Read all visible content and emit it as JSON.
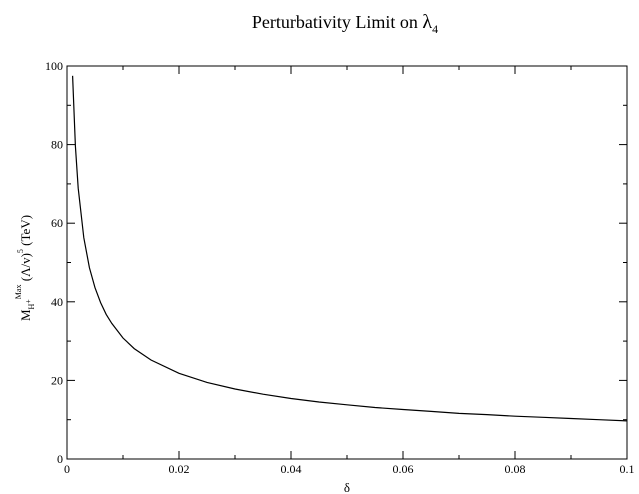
{
  "chart_data": {
    "type": "line",
    "title": {
      "main": "Perturbativity Limit on ",
      "symbol": "λ",
      "subscript": "4"
    },
    "xlabel": "δ",
    "ylabel": {
      "m": "M",
      "h": "H",
      "plus": "+",
      "max": "Max",
      "lambda_v": "(Λ/v)",
      "power": "5",
      "unit": "(TeV)"
    },
    "xlim": [
      0,
      0.1
    ],
    "ylim": [
      0,
      100
    ],
    "x_ticks": [
      "0",
      "0.02",
      "0.04",
      "0.06",
      "0.08",
      "0.1"
    ],
    "y_ticks": [
      "0",
      "20",
      "40",
      "60",
      "80",
      "100"
    ],
    "grid": false,
    "series": [
      {
        "color": "#000000",
        "points": [
          [
            0.001,
            97.5
          ],
          [
            0.0015,
            79.6
          ],
          [
            0.002,
            68.9
          ],
          [
            0.003,
            56.3
          ],
          [
            0.004,
            48.7
          ],
          [
            0.005,
            43.6
          ],
          [
            0.006,
            39.8
          ],
          [
            0.007,
            36.8
          ],
          [
            0.008,
            34.5
          ],
          [
            0.01,
            30.8
          ],
          [
            0.012,
            28.1
          ],
          [
            0.015,
            25.2
          ],
          [
            0.02,
            21.8
          ],
          [
            0.025,
            19.5
          ],
          [
            0.03,
            17.8
          ],
          [
            0.035,
            16.5
          ],
          [
            0.04,
            15.4
          ],
          [
            0.045,
            14.5
          ],
          [
            0.05,
            13.8
          ],
          [
            0.055,
            13.1
          ],
          [
            0.06,
            12.6
          ],
          [
            0.065,
            12.1
          ],
          [
            0.07,
            11.6
          ],
          [
            0.075,
            11.3
          ],
          [
            0.08,
            10.9
          ],
          [
            0.085,
            10.6
          ],
          [
            0.09,
            10.3
          ],
          [
            0.095,
            10.0
          ],
          [
            0.1,
            9.7
          ]
        ]
      }
    ]
  }
}
